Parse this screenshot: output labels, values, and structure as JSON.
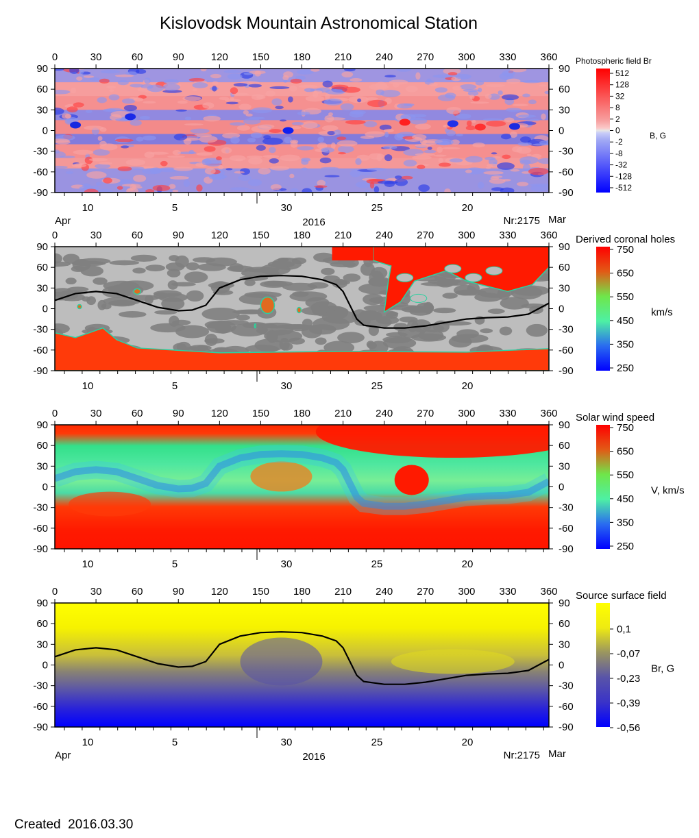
{
  "title": "Kislovodsk Mountain Astronomical Station",
  "footer": {
    "created_label": "Created",
    "created_date": "2016.03.30"
  },
  "colors": {
    "br_positive": "#f78a8a",
    "br_negative": "#7b86ee",
    "coronal_hole_red": "#ff1a00",
    "quiet_gray_light": "#bdbdbd",
    "quiet_gray_dark": "#7e7e7e",
    "ss_yellow": "#ffff00",
    "ss_blue": "#0000ff"
  },
  "chart_data": [
    {
      "type": "heatmap",
      "title": "Photospheric field Br",
      "colorbar_label": "B, G",
      "colorbar_ticks": [
        "512",
        "128",
        "32",
        "8",
        "2",
        "0",
        "-2",
        "-8",
        "-32",
        "-128",
        "-512"
      ],
      "x_top_ticks": [
        "0",
        "30",
        "60",
        "90",
        "120",
        "150",
        "180",
        "210",
        "240",
        "270",
        "300",
        "330",
        "360"
      ],
      "y_ticks": [
        "90",
        "60",
        "30",
        "0",
        "-30",
        "-60",
        "-90"
      ],
      "date_ticks": [
        "10",
        "5",
        "30",
        "25",
        "20"
      ],
      "xlim": [
        0,
        360
      ],
      "ylim": [
        -90,
        90
      ],
      "bottom_left": "Apr",
      "bottom_center": "2016",
      "bottom_right": "Nr:2175",
      "bottom_far_right": "Mar",
      "grid": false
    },
    {
      "type": "heatmap",
      "title": "Derived coronal holes",
      "colorbar_label": "km/s",
      "colorbar_ticks": [
        "750",
        "650",
        "550",
        "450",
        "350",
        "250"
      ],
      "x_top_ticks": [
        "0",
        "30",
        "60",
        "90",
        "120",
        "150",
        "180",
        "210",
        "240",
        "270",
        "300",
        "330",
        "360"
      ],
      "y_ticks": [
        "90",
        "60",
        "30",
        "0",
        "-30",
        "-60",
        "-90"
      ],
      "date_ticks": [
        "10",
        "5",
        "30",
        "25",
        "20"
      ],
      "xlim": [
        0,
        360
      ],
      "ylim": [
        -90,
        90
      ],
      "neutral_line": {
        "x": [
          0,
          15,
          30,
          45,
          60,
          75,
          90,
          100,
          110,
          120,
          135,
          150,
          165,
          180,
          195,
          205,
          210,
          215,
          220,
          225,
          240,
          255,
          270,
          285,
          300,
          315,
          330,
          345,
          360
        ],
        "y": [
          12,
          22,
          25,
          22,
          12,
          2,
          -3,
          -2,
          5,
          30,
          42,
          47,
          48,
          47,
          42,
          35,
          25,
          5,
          -15,
          -24,
          -28,
          -28,
          -25,
          -20,
          -15,
          -13,
          -12,
          -8,
          8
        ]
      },
      "grid": false
    },
    {
      "type": "heatmap",
      "title": "Solar wind speed",
      "colorbar_label": "V, km/s",
      "colorbar_ticks": [
        "750",
        "650",
        "550",
        "450",
        "350",
        "250"
      ],
      "x_top_ticks": [
        "0",
        "30",
        "60",
        "90",
        "120",
        "150",
        "180",
        "210",
        "240",
        "270",
        "300",
        "330",
        "360"
      ],
      "y_ticks": [
        "90",
        "60",
        "30",
        "0",
        "-30",
        "-60",
        "-90"
      ],
      "date_ticks": [
        "10",
        "5",
        "30",
        "25",
        "20"
      ],
      "xlim": [
        0,
        360
      ],
      "ylim": [
        -90,
        90
      ],
      "grid": false
    },
    {
      "type": "heatmap",
      "title": "Source surface field",
      "colorbar_label": "Br, G",
      "colorbar_ticks": [
        "0,1",
        "-0,07",
        "-0,23",
        "-0,39",
        "-0,56"
      ],
      "x_top_ticks": [
        "0",
        "30",
        "60",
        "90",
        "120",
        "150",
        "180",
        "210",
        "240",
        "270",
        "300",
        "330",
        "360"
      ],
      "y_ticks": [
        "90",
        "60",
        "30",
        "0",
        "-30",
        "-60",
        "-90"
      ],
      "date_ticks": [
        "10",
        "5",
        "30",
        "25",
        "20"
      ],
      "xlim": [
        0,
        360
      ],
      "ylim": [
        -90,
        90
      ],
      "bottom_left": "Apr",
      "bottom_center": "2016",
      "bottom_right": "Nr:2175",
      "bottom_far_right": "Mar",
      "grid": false
    }
  ]
}
